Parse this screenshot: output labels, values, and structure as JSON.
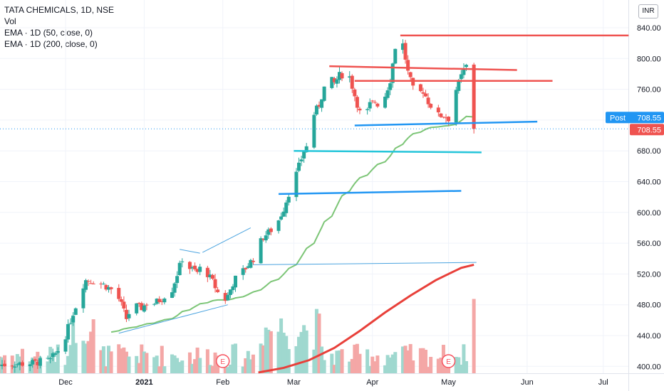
{
  "legend": {
    "title": "TATA CHEMICALS, 1D, NSE",
    "vol": "Vol",
    "ema50": "EMA · 1D (50, close, 0)",
    "ema200": "EMA · 1D (200, close, 0)"
  },
  "currency": "INR",
  "post_label": "Post",
  "post_value": "708.55",
  "last_price_label": "708.55",
  "colors": {
    "up": "#26a69a",
    "down": "#ef5350",
    "vol_up": "#9fd8cf",
    "vol_down": "#f4a7a6",
    "ema50": "#7cc576",
    "ema200": "#e8403a",
    "blue": "#2196f3",
    "cyan": "#26c6da",
    "red_line": "#ef5350"
  },
  "earnings_marker": "E",
  "chart_data": {
    "type": "candlestick",
    "title": "TATA CHEMICALS, 1D, NSE",
    "y_ticks": [
      "840.00",
      "800.00",
      "760.00",
      "720.00",
      "680.00",
      "640.00",
      "600.00",
      "560.00",
      "520.00",
      "480.00",
      "440.00",
      "400.00"
    ],
    "y_tick_values": [
      840,
      800,
      760,
      720,
      680,
      640,
      600,
      560,
      520,
      480,
      440,
      400
    ],
    "ylim": [
      392,
      850
    ],
    "x_ticks": [
      {
        "label": "Dec",
        "day": 0
      },
      {
        "label": "2021",
        "day": 31
      },
      {
        "label": "Feb",
        "day": 62
      },
      {
        "label": "Mar",
        "day": 90
      },
      {
        "label": "Apr",
        "day": 121
      },
      {
        "label": "May",
        "day": 151
      },
      {
        "label": "Jun",
        "day": 182
      },
      {
        "label": "Jul",
        "day": 212
      }
    ],
    "last_close": 708.55,
    "grid": true,
    "legend_position": "top-left"
  }
}
